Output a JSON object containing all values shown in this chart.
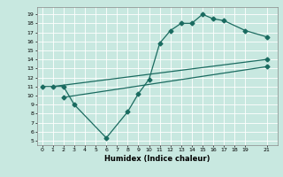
{
  "bg_color": "#c8e8e0",
  "line_color": "#1a6b60",
  "grid_color": "#ffffff",
  "ylabel_values": [
    5,
    6,
    7,
    8,
    9,
    10,
    11,
    12,
    13,
    14,
    15,
    16,
    17,
    18,
    19
  ],
  "xlabel_values": [
    0,
    1,
    2,
    3,
    4,
    5,
    6,
    7,
    8,
    9,
    10,
    11,
    12,
    13,
    14,
    15,
    16,
    17,
    18,
    19,
    21
  ],
  "xlabel": "Humidex (Indice chaleur)",
  "ylim": [
    4.5,
    19.8
  ],
  "xlim": [
    -0.5,
    22
  ],
  "line1_x": [
    0,
    2,
    3,
    6,
    8,
    9,
    10,
    11,
    12,
    13,
    14,
    15,
    16,
    17,
    19,
    21
  ],
  "line1_y": [
    11,
    11,
    9,
    5.3,
    8.2,
    10.2,
    11.8,
    15.8,
    17.2,
    18.0,
    18.0,
    19.0,
    18.5,
    18.3,
    17.2,
    16.5
  ],
  "line2_x": [
    1,
    21
  ],
  "line2_y": [
    11,
    14.0
  ],
  "line3_x": [
    2,
    21
  ],
  "line3_y": [
    9.8,
    13.2
  ],
  "marker": "D",
  "markersize": 2.5,
  "linewidth": 0.9
}
